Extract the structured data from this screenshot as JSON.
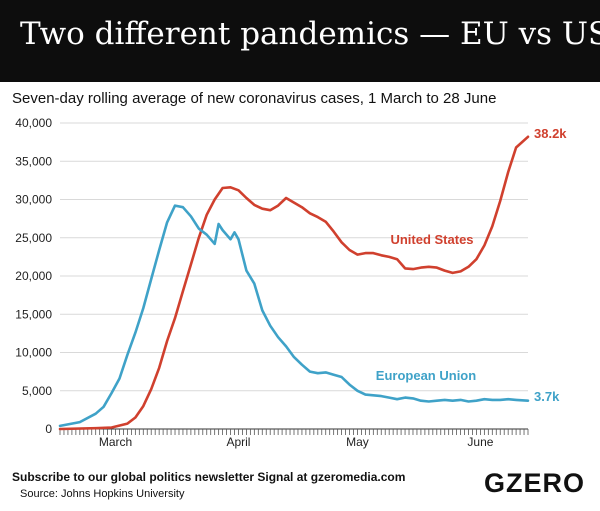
{
  "header": {
    "title": "Two different pandemics — EU vs US",
    "subtitle": "Seven-day rolling average of new coronavirus cases, 1 March to 28 June"
  },
  "footer": {
    "subscribe": "Subscribe to our global politics newsletter Signal at gzeromedia.com",
    "source": "Source: Johns Hopkins University",
    "logo": "GZERO"
  },
  "colors": {
    "us": "#d0402e",
    "eu": "#3fa2c8",
    "header_bg": "#0d0d0d",
    "grid": "#d9d9d9"
  },
  "chart_data": {
    "type": "line",
    "title": "Two different pandemics — EU vs US",
    "subtitle": "Seven-day rolling average of new coronavirus cases, 1 March to 28 June",
    "xlabel": "",
    "ylabel": "",
    "ylim": [
      0,
      40000
    ],
    "yticks": [
      0,
      5000,
      10000,
      15000,
      20000,
      25000,
      30000,
      35000,
      40000
    ],
    "ytick_labels": [
      "0",
      "5,000",
      "10,000",
      "15,000",
      "20,000",
      "25,000",
      "30,000",
      "35,000",
      "40,000"
    ],
    "x_start": "1 March",
    "x_end": "28 June",
    "month_labels": [
      {
        "label": "March",
        "day": 15
      },
      {
        "label": "April",
        "day": 46
      },
      {
        "label": "May",
        "day": 76
      },
      {
        "label": "June",
        "day": 107
      }
    ],
    "grid": true,
    "series": [
      {
        "name": "United States",
        "end_label": "38.2k",
        "points": [
          [
            1,
            0
          ],
          [
            10,
            100
          ],
          [
            14,
            200
          ],
          [
            18,
            700
          ],
          [
            20,
            1500
          ],
          [
            22,
            3000
          ],
          [
            24,
            5200
          ],
          [
            26,
            8000
          ],
          [
            28,
            11500
          ],
          [
            30,
            14500
          ],
          [
            32,
            18000
          ],
          [
            34,
            21500
          ],
          [
            36,
            25000
          ],
          [
            38,
            28000
          ],
          [
            40,
            30000
          ],
          [
            42,
            31500
          ],
          [
            44,
            31600
          ],
          [
            46,
            31200
          ],
          [
            48,
            30200
          ],
          [
            50,
            29300
          ],
          [
            52,
            28800
          ],
          [
            54,
            28600
          ],
          [
            56,
            29200
          ],
          [
            58,
            30200
          ],
          [
            60,
            29600
          ],
          [
            62,
            29000
          ],
          [
            64,
            28200
          ],
          [
            66,
            27700
          ],
          [
            68,
            27100
          ],
          [
            70,
            25800
          ],
          [
            72,
            24400
          ],
          [
            74,
            23400
          ],
          [
            76,
            22800
          ],
          [
            78,
            23000
          ],
          [
            80,
            23000
          ],
          [
            82,
            22700
          ],
          [
            84,
            22500
          ],
          [
            86,
            22200
          ],
          [
            88,
            21000
          ],
          [
            90,
            20900
          ],
          [
            92,
            21100
          ],
          [
            94,
            21200
          ],
          [
            96,
            21100
          ],
          [
            98,
            20700
          ],
          [
            100,
            20400
          ],
          [
            102,
            20600
          ],
          [
            104,
            21200
          ],
          [
            106,
            22200
          ],
          [
            108,
            24000
          ],
          [
            110,
            26500
          ],
          [
            112,
            29800
          ],
          [
            114,
            33600
          ],
          [
            116,
            36800
          ],
          [
            119,
            38200
          ]
        ]
      },
      {
        "name": "European Union",
        "end_label": "3.7k",
        "points": [
          [
            1,
            400
          ],
          [
            6,
            900
          ],
          [
            10,
            2000
          ],
          [
            12,
            2900
          ],
          [
            14,
            4700
          ],
          [
            16,
            6600
          ],
          [
            18,
            9700
          ],
          [
            20,
            12600
          ],
          [
            22,
            15800
          ],
          [
            24,
            19600
          ],
          [
            26,
            23400
          ],
          [
            28,
            27000
          ],
          [
            30,
            29200
          ],
          [
            32,
            29000
          ],
          [
            34,
            27800
          ],
          [
            36,
            26200
          ],
          [
            38,
            25400
          ],
          [
            40,
            24200
          ],
          [
            41,
            26800
          ],
          [
            42,
            26000
          ],
          [
            44,
            24800
          ],
          [
            45,
            25700
          ],
          [
            46,
            24800
          ],
          [
            48,
            20700
          ],
          [
            50,
            19000
          ],
          [
            52,
            15500
          ],
          [
            54,
            13500
          ],
          [
            56,
            12000
          ],
          [
            58,
            10800
          ],
          [
            60,
            9400
          ],
          [
            62,
            8400
          ],
          [
            64,
            7500
          ],
          [
            66,
            7300
          ],
          [
            68,
            7400
          ],
          [
            70,
            7100
          ],
          [
            72,
            6800
          ],
          [
            74,
            5800
          ],
          [
            76,
            5000
          ],
          [
            78,
            4500
          ],
          [
            80,
            4400
          ],
          [
            82,
            4300
          ],
          [
            84,
            4100
          ],
          [
            86,
            3900
          ],
          [
            88,
            4100
          ],
          [
            90,
            4000
          ],
          [
            92,
            3700
          ],
          [
            94,
            3600
          ],
          [
            96,
            3700
          ],
          [
            98,
            3800
          ],
          [
            100,
            3700
          ],
          [
            102,
            3800
          ],
          [
            104,
            3600
          ],
          [
            106,
            3700
          ],
          [
            108,
            3900
          ],
          [
            110,
            3800
          ],
          [
            112,
            3800
          ],
          [
            114,
            3900
          ],
          [
            116,
            3800
          ],
          [
            119,
            3700
          ]
        ]
      }
    ]
  }
}
